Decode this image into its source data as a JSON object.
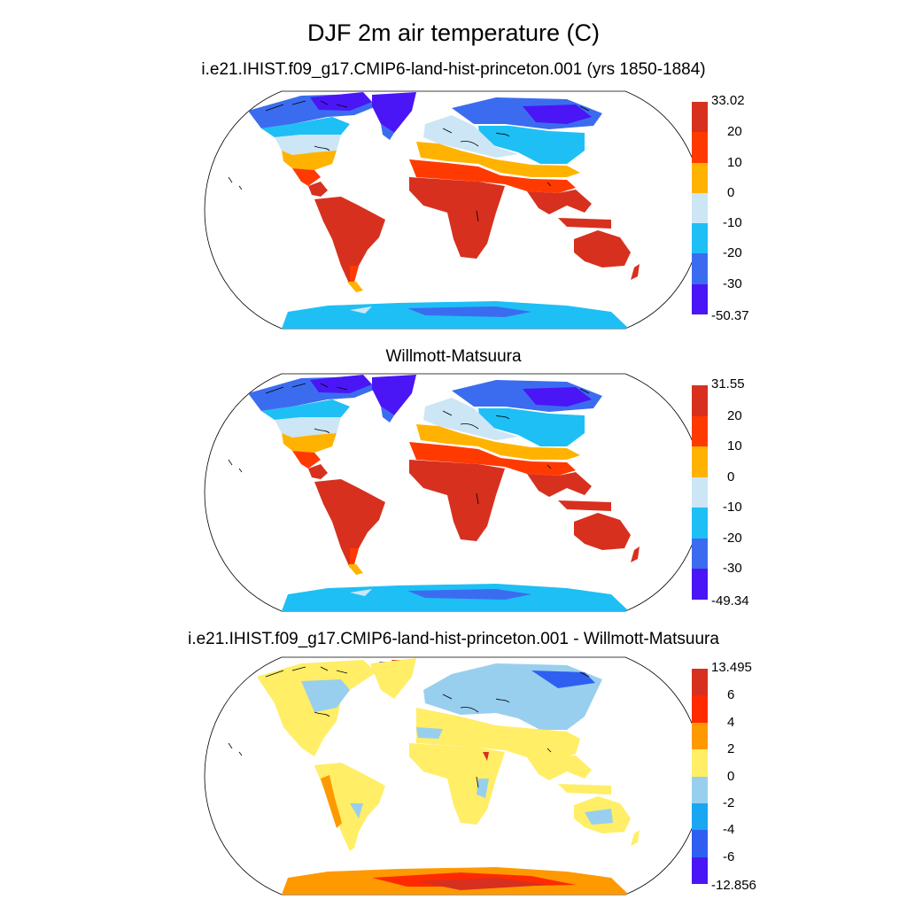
{
  "figure": {
    "title": "DJF 2m air temperature (C)"
  },
  "panels": [
    {
      "id": "model",
      "title": "i.e21.IHIST.f09_g17.CMIP6-land-hist-princeton.001 (yrs 1850-1884)",
      "colorbar": {
        "labels": [
          "33.02",
          "20",
          "10",
          "0",
          "-10",
          "-20",
          "-30",
          "-50.37"
        ],
        "colors": [
          "#d7301f",
          "#ff3a00",
          "#ffb300",
          "#cce6f5",
          "#1ebff5",
          "#3b6cf0",
          "#4a16f5"
        ]
      }
    },
    {
      "id": "obs",
      "title": "Willmott-Matsuura",
      "colorbar": {
        "labels": [
          "31.55",
          "20",
          "10",
          "0",
          "-10",
          "-20",
          "-30",
          "-49.34"
        ],
        "colors": [
          "#d7301f",
          "#ff3a00",
          "#ffb300",
          "#cce6f5",
          "#1ebff5",
          "#3b6cf0",
          "#4a16f5"
        ]
      }
    },
    {
      "id": "diff",
      "title": "i.e21.IHIST.f09_g17.CMIP6-land-hist-princeton.001 - Willmott-Matsuura",
      "colorbar": {
        "labels": [
          "13.495",
          "6",
          "4",
          "2",
          "0",
          "-2",
          "-4",
          "-6",
          "-12.856"
        ],
        "colors": [
          "#d7301f",
          "#ff2a00",
          "#ff9900",
          "#ffee66",
          "#99cfee",
          "#1aa6f0",
          "#2f5ff0",
          "#4a16f5"
        ]
      }
    }
  ]
}
